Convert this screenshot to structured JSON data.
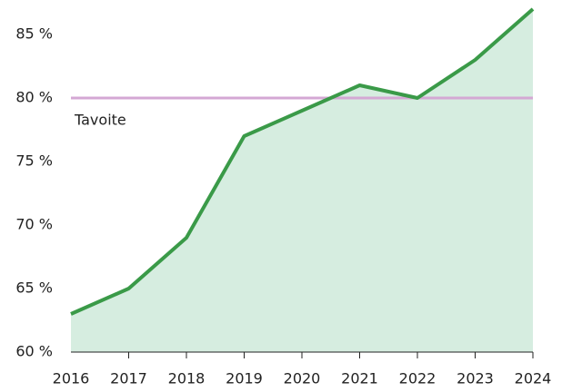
{
  "chart_data": {
    "type": "area",
    "categories": [
      "2016",
      "2017",
      "2018",
      "2019",
      "2020",
      "2021",
      "2022",
      "2023",
      "2024"
    ],
    "values": [
      63,
      65,
      69,
      77,
      79,
      81,
      80,
      83,
      87
    ],
    "color": "#3a9a48",
    "fill": "#d6ede0",
    "ylim": [
      60,
      87
    ],
    "yticks": [
      {
        "value": 60,
        "label": "60 %"
      },
      {
        "value": 65,
        "label": "65 %"
      },
      {
        "value": 70,
        "label": "70 %"
      },
      {
        "value": 75,
        "label": "75 %"
      },
      {
        "value": 80,
        "label": "80 %"
      },
      {
        "value": 85,
        "label": "85 %"
      }
    ],
    "target": {
      "value": 80,
      "label": "Tavoite",
      "color": "#d4a8d4"
    }
  }
}
